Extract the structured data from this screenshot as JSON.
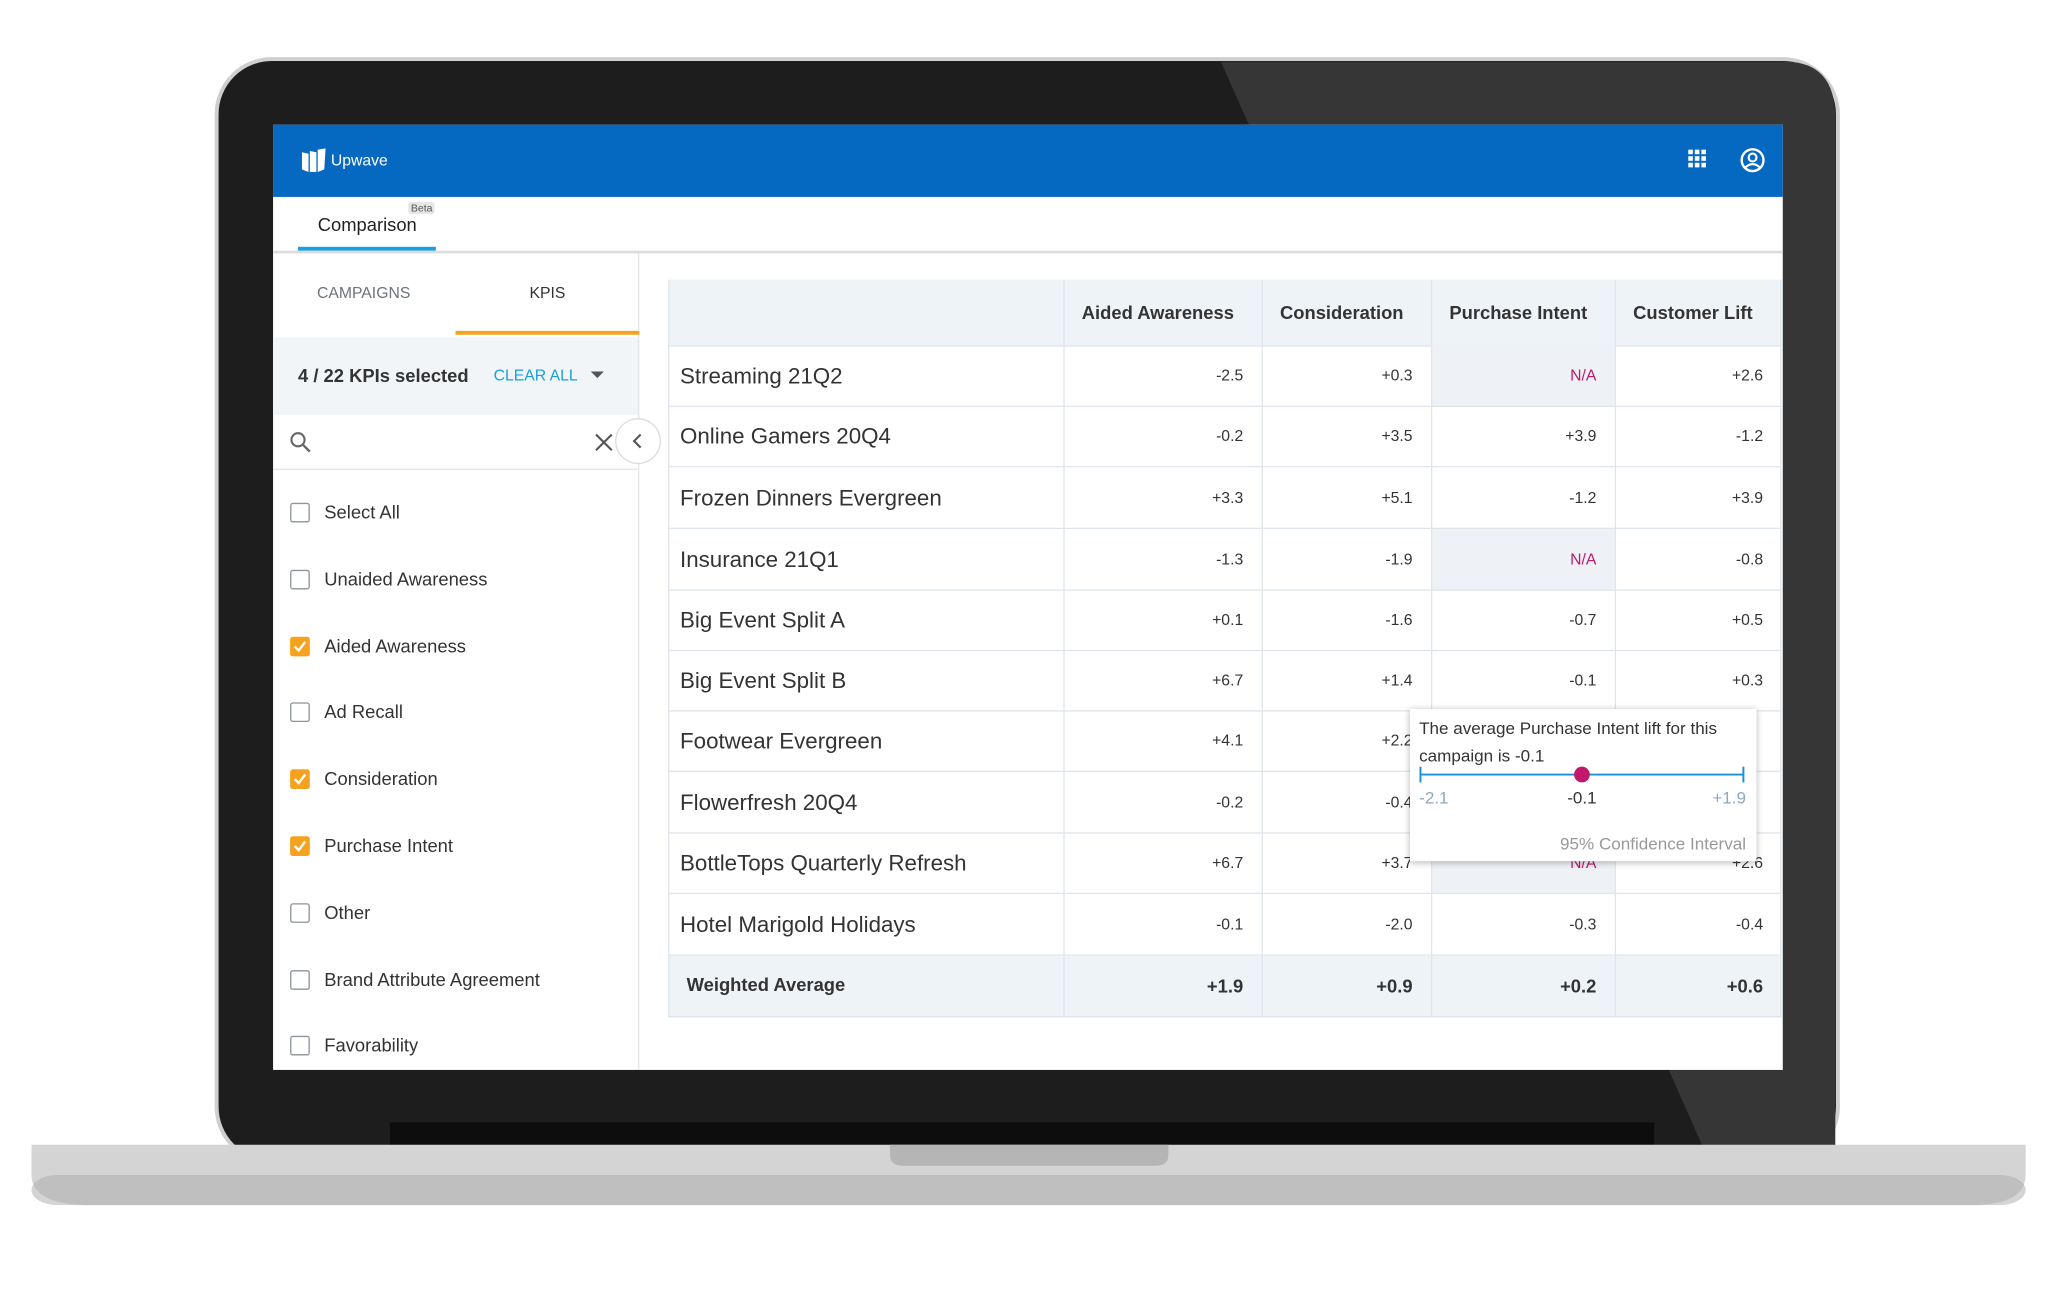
{
  "header": {
    "brand": "Upwave"
  },
  "tabs": {
    "active": "Comparison",
    "badge": "Beta"
  },
  "sidebar": {
    "tabs": [
      "CAMPAIGNS",
      "KPIS"
    ],
    "selected_count": "4 / 22 KPIs selected",
    "clear_all": "CLEAR ALL",
    "kpis": [
      {
        "label": "Select All",
        "checked": false
      },
      {
        "label": "Unaided Awareness",
        "checked": false
      },
      {
        "label": "Aided Awareness",
        "checked": true
      },
      {
        "label": "Ad Recall",
        "checked": false
      },
      {
        "label": "Consideration",
        "checked": true
      },
      {
        "label": "Purchase Intent",
        "checked": true
      },
      {
        "label": "Other",
        "checked": false
      },
      {
        "label": "Brand Attribute Agreement",
        "checked": false
      },
      {
        "label": "Favorability",
        "checked": false
      }
    ]
  },
  "table": {
    "columns": [
      "Aided Awareness",
      "Consideration",
      "Purchase Intent",
      "Customer Lift"
    ],
    "rows": [
      {
        "campaign": "Streaming 21Q2",
        "values": [
          "-2.5",
          "+0.3",
          "N/A",
          "+2.6"
        ]
      },
      {
        "campaign": "Online Gamers 20Q4",
        "values": [
          "-0.2",
          "+3.5",
          "+3.9",
          "-1.2"
        ]
      },
      {
        "campaign": "Frozen Dinners Evergreen",
        "values": [
          "+3.3",
          "+5.1",
          "-1.2",
          "+3.9"
        ]
      },
      {
        "campaign": "Insurance 21Q1",
        "values": [
          "-1.3",
          "-1.9",
          "N/A",
          "-0.8"
        ]
      },
      {
        "campaign": "Big Event Split A",
        "values": [
          "+0.1",
          "-1.6",
          "-0.7",
          "+0.5"
        ]
      },
      {
        "campaign": "Big Event Split B",
        "values": [
          "+6.7",
          "+1.4",
          "-0.1",
          "+0.3"
        ]
      },
      {
        "campaign": "Footwear Evergreen",
        "values": [
          "+4.1",
          "+2.2",
          null,
          null
        ]
      },
      {
        "campaign": "Flowerfresh 20Q4",
        "values": [
          "-0.2",
          "-0.4",
          null,
          null
        ]
      },
      {
        "campaign": "BottleTops Quarterly Refresh",
        "values": [
          "+6.7",
          "+3.7",
          "N/A",
          "+2.6"
        ]
      },
      {
        "campaign": "Hotel Marigold Holidays",
        "values": [
          "-0.1",
          "-2.0",
          "-0.3",
          "-0.4"
        ]
      }
    ],
    "weighted_average": {
      "label": "Weighted Average",
      "values": [
        "+1.9",
        "+0.9",
        "+0.2",
        "+0.6"
      ]
    }
  },
  "tooltip": {
    "text": "The average Purchase Intent lift for this campaign is -0.1",
    "min": "-2.1",
    "point": "-0.1",
    "max": "+1.9",
    "caption": "95% Confidence Interval"
  }
}
